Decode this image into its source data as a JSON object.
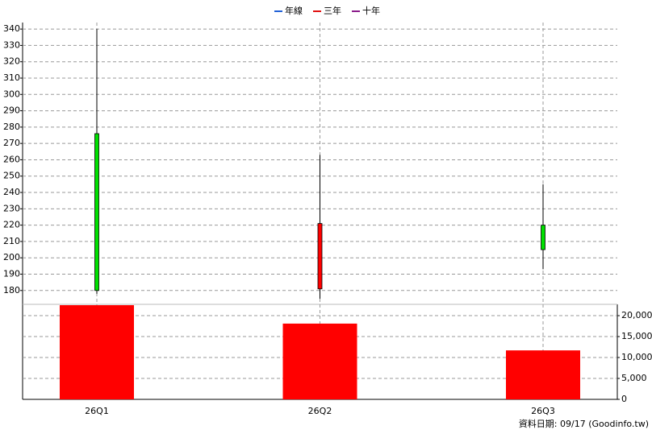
{
  "chart_data": {
    "type": "candlestick",
    "legend": [
      {
        "name": "年線",
        "color": "#1f5fd6"
      },
      {
        "name": "三年",
        "color": "#e01010"
      },
      {
        "name": "十年",
        "color": "#8a1a8a"
      }
    ],
    "categories": [
      "26Q1",
      "26Q2",
      "26Q3"
    ],
    "open": [
      276,
      181,
      220
    ],
    "high": [
      340,
      263,
      245
    ],
    "low": [
      178,
      175,
      193
    ],
    "close": [
      180,
      221,
      205
    ],
    "up_color": "#ff0000",
    "down_color": "#00e000",
    "ylim": [
      173,
      344
    ],
    "yticks": [
      180,
      190,
      200,
      210,
      220,
      230,
      240,
      250,
      260,
      270,
      280,
      290,
      300,
      310,
      320,
      330,
      340
    ],
    "volume": {
      "values": [
        22500,
        18100,
        11700
      ],
      "color": "#ff0000"
    },
    "y2lim": [
      0,
      22700
    ],
    "y2ticks": [
      0,
      {
        "value": 5000,
        "label": "5,000"
      },
      {
        "value": 10000,
        "label": "10,000"
      },
      {
        "value": 15000,
        "label": "15,000"
      },
      {
        "value": 20000,
        "label": "20,000"
      }
    ],
    "grid": true,
    "footnote": "資料日期: 09/17  (Goodinfo.tw)"
  }
}
